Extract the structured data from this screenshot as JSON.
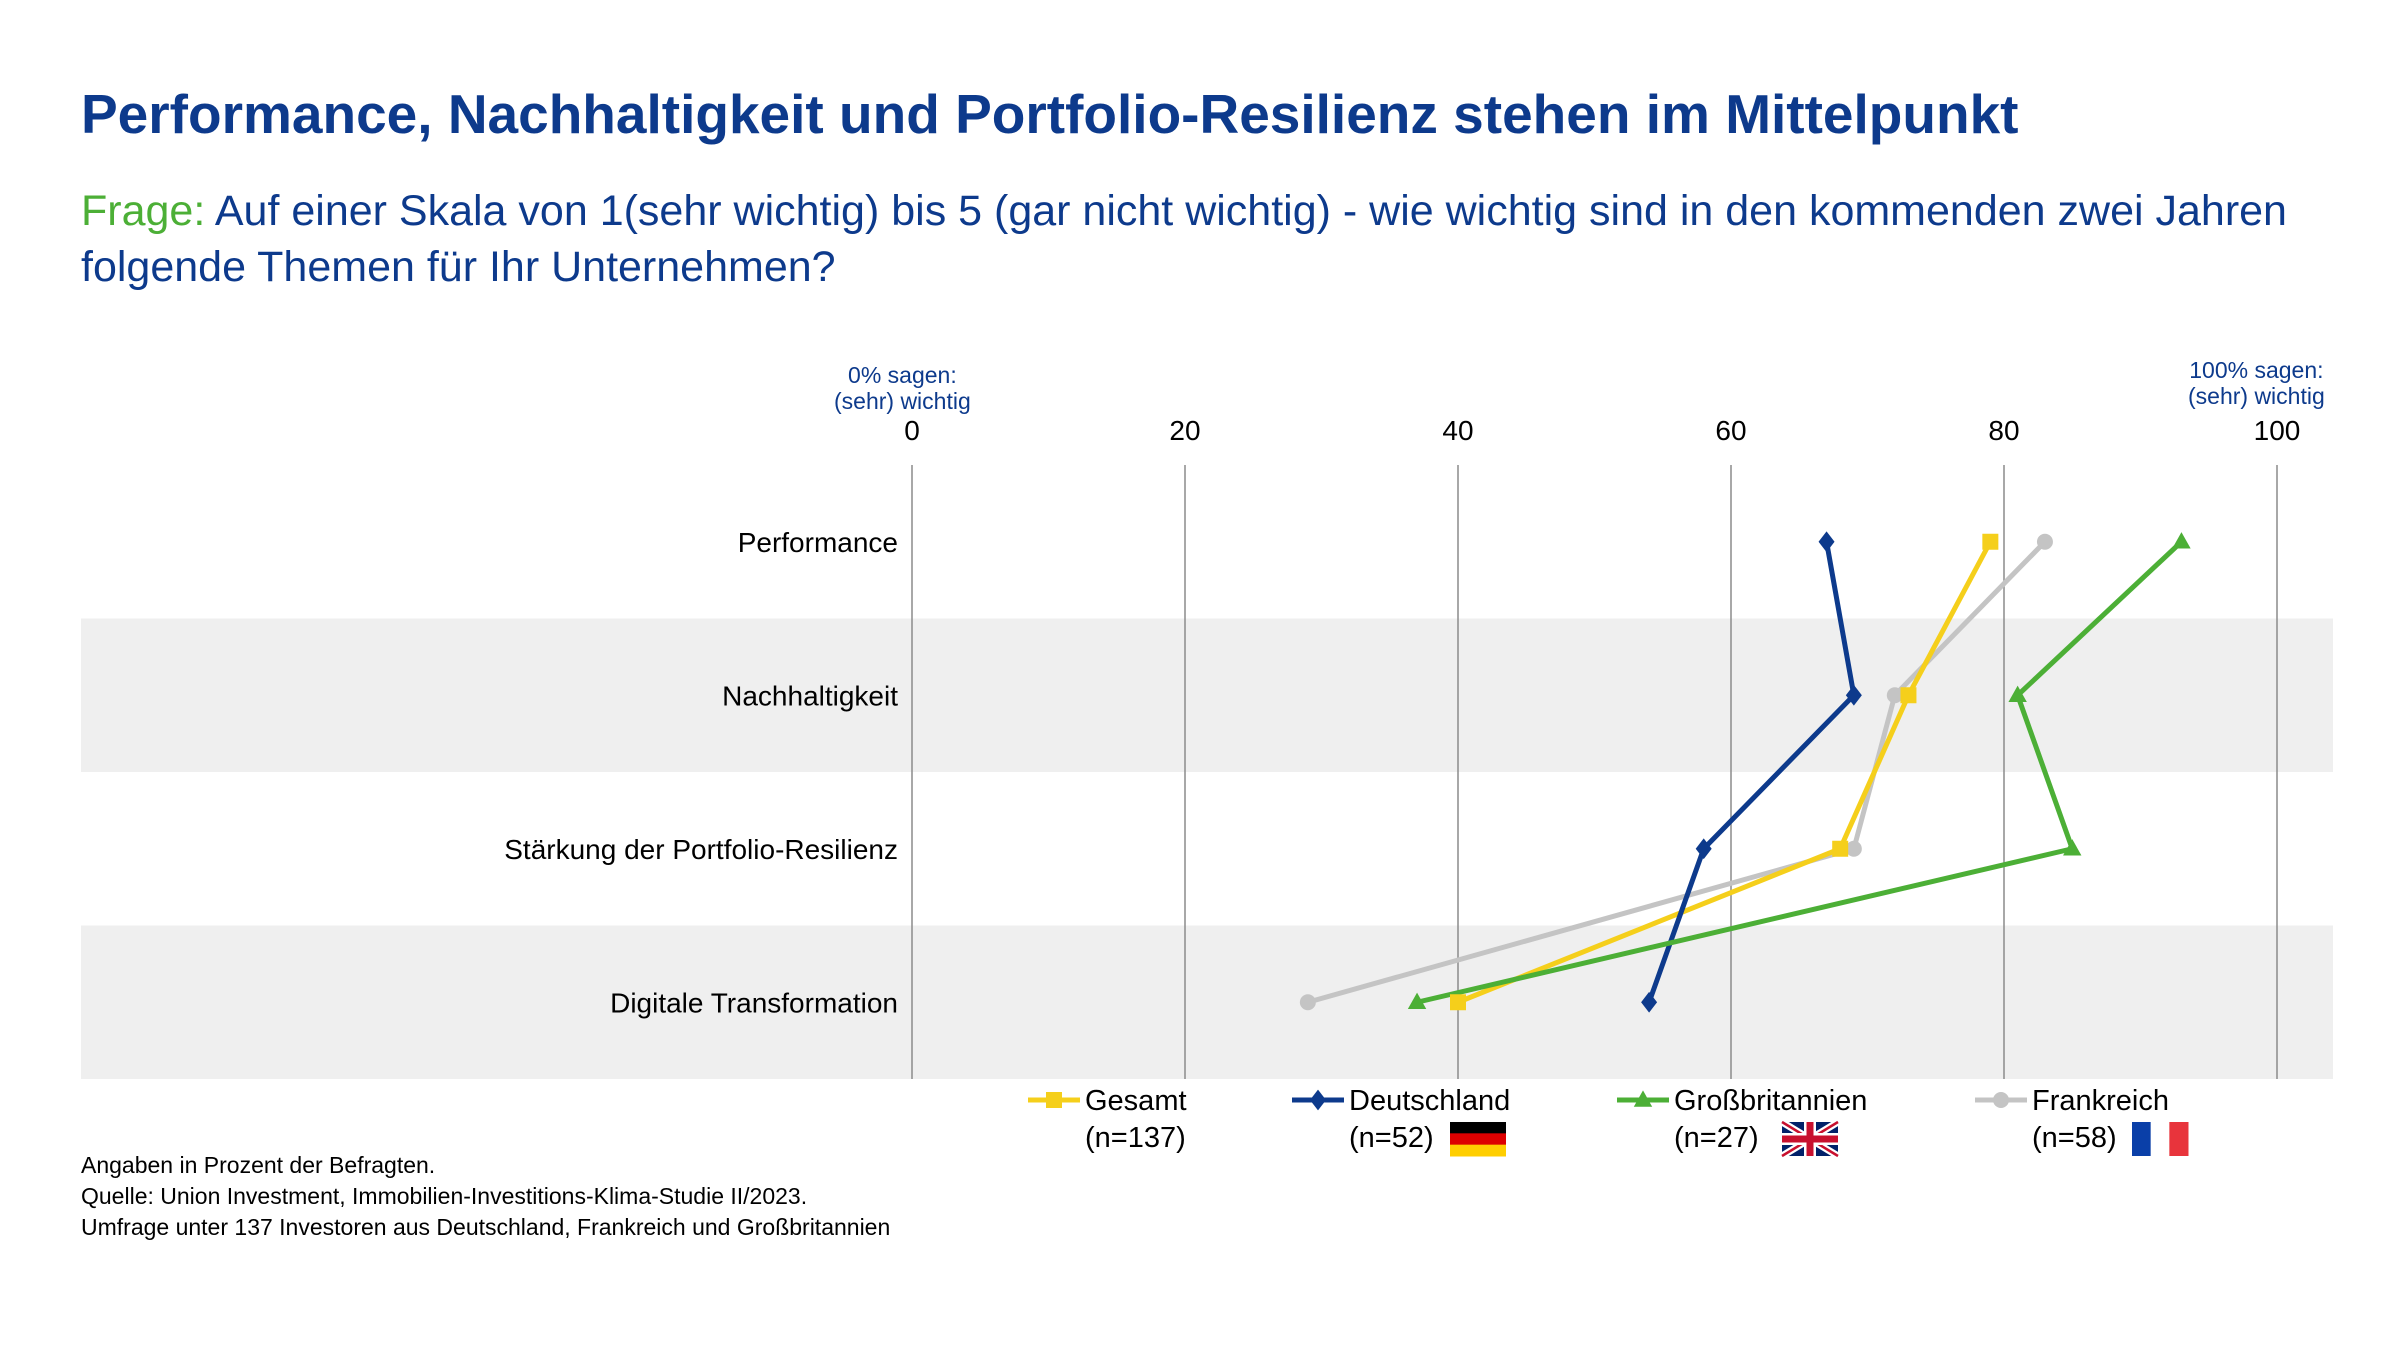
{
  "title": "Performance, Nachhaltigkeit und Portfolio-Resilienz stehen im Mittelpunkt",
  "question": {
    "prefix": "Frage:",
    "text": "Auf einer Skala von 1(sehr wichtig) bis 5 (gar nicht wichtig) - wie wichtig sind in den kommenden zwei Jahren folgende Themen für Ihr Unternehmen?"
  },
  "axis_notes": {
    "left_line1": "0% sagen:",
    "left_line2": "(sehr) wichtig",
    "right_line1": "100% sagen:",
    "right_line2": "(sehr) wichtig"
  },
  "chart_data": {
    "type": "line",
    "orientation": "horizontal-value-axis",
    "categories": [
      "Performance",
      "Nachhaltigkeit",
      "Stärkung der Portfolio-Resilienz",
      "Digitale Transformation"
    ],
    "xlim": [
      0,
      100
    ],
    "xticks": [
      0,
      20,
      40,
      60,
      80,
      100
    ],
    "grid": true,
    "legend_position": "bottom",
    "series": [
      {
        "name": "Gesamt",
        "n_label": "(n=137)",
        "color": "#f5cf1b",
        "marker": "square",
        "flag": "",
        "values": [
          79,
          73,
          68,
          40
        ]
      },
      {
        "name": "Deutschland",
        "n_label": "(n=52)",
        "color": "#0d3a8c",
        "marker": "diamond",
        "flag": "germany-flag",
        "values": [
          67,
          69,
          58,
          54
        ]
      },
      {
        "name": "Großbritannien",
        "n_label": "(n=27)",
        "color": "#4caf36",
        "marker": "triangle",
        "flag": "uk-flag",
        "values": [
          93,
          81,
          85,
          37
        ]
      },
      {
        "name": "Frankreich",
        "n_label": "(n=58)",
        "color": "#c4c4c4",
        "marker": "circle",
        "flag": "france-flag",
        "values": [
          83,
          72,
          69,
          29
        ]
      }
    ]
  },
  "footnotes": [
    "Angaben in Prozent der Befragten.",
    "Quelle: Union Investment, Immobilien-Investitions-Klima-Studie II/2023.",
    "Umfrage unter 137 Investoren aus Deutschland, Frankreich und Großbritannien"
  ]
}
